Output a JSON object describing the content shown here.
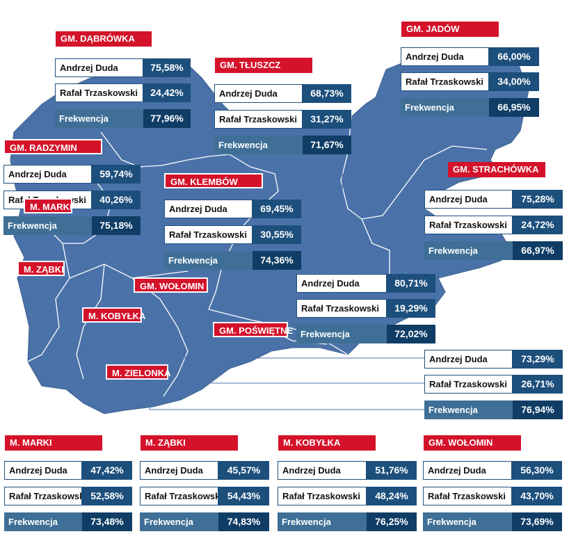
{
  "labels": {
    "candidate_duda": "Andrzej Duda",
    "candidate_trzaskowski": "Rafał Trzaskowski",
    "turnout": "Frekwencja"
  },
  "map_only_labels": {
    "marki": "M. MARKI",
    "zabki": "M. ZĄBKI",
    "kobylka": "M. KOBYŁKA",
    "wolomin": "GM. WOŁOMIN",
    "zielonka": "M. ZIELONKA",
    "poswietne": "GM. POŚWIĘTNE"
  },
  "regions": {
    "dabrowka": {
      "name": "GM. DĄBRÓWKA",
      "duda": "75,58%",
      "trzaskowski": "24,42%",
      "turnout": "77,96%"
    },
    "tluszcz": {
      "name": "GM. TŁUSZCZ",
      "duda": "68,73%",
      "trzaskowski": "31,27%",
      "turnout": "71,67%"
    },
    "jadow": {
      "name": "GM. JADÓW",
      "duda": "66,00%",
      "trzaskowski": "34,00%",
      "turnout": "66,95%"
    },
    "radzymin": {
      "name": "GM. RADZYMIN",
      "duda": "59,74%",
      "trzaskowski": "40,26%",
      "turnout": "75,18%"
    },
    "klembow": {
      "name": "GM. KLEMBÓW",
      "duda": "69,45%",
      "trzaskowski": "30,55%",
      "turnout": "74,36%"
    },
    "strachowka": {
      "name": "GM. STRACHÓWKA",
      "duda": "75,28%",
      "trzaskowski": "24,72%",
      "turnout": "66,97%"
    },
    "poswietne": {
      "duda": "80,71%",
      "trzaskowski": "19,29%",
      "turnout": "72,02%"
    },
    "zielonka": {
      "duda": "73,29%",
      "trzaskowski": "26,71%",
      "turnout": "76,94%"
    }
  },
  "bottom": [
    {
      "name": "M. MARKI",
      "duda": "47,42%",
      "trzaskowski": "52,58%",
      "turnout": "73,48%"
    },
    {
      "name": "M. ZĄBKI",
      "duda": "45,57%",
      "trzaskowski": "54,43%",
      "turnout": "74,83%"
    },
    {
      "name": "M. KOBYŁKA",
      "duda": "51,76%",
      "trzaskowski": "48,24%",
      "turnout": "76,25%"
    },
    {
      "name": "GM. WOŁOMIN",
      "duda": "56,30%",
      "trzaskowski": "43,70%",
      "turnout": "73,69%"
    }
  ],
  "colors": {
    "map_fill": "#4a72a9",
    "label_red": "#d4122a",
    "value_blue": "#1d4f7c",
    "turnout_blue": "#3f6f96"
  }
}
